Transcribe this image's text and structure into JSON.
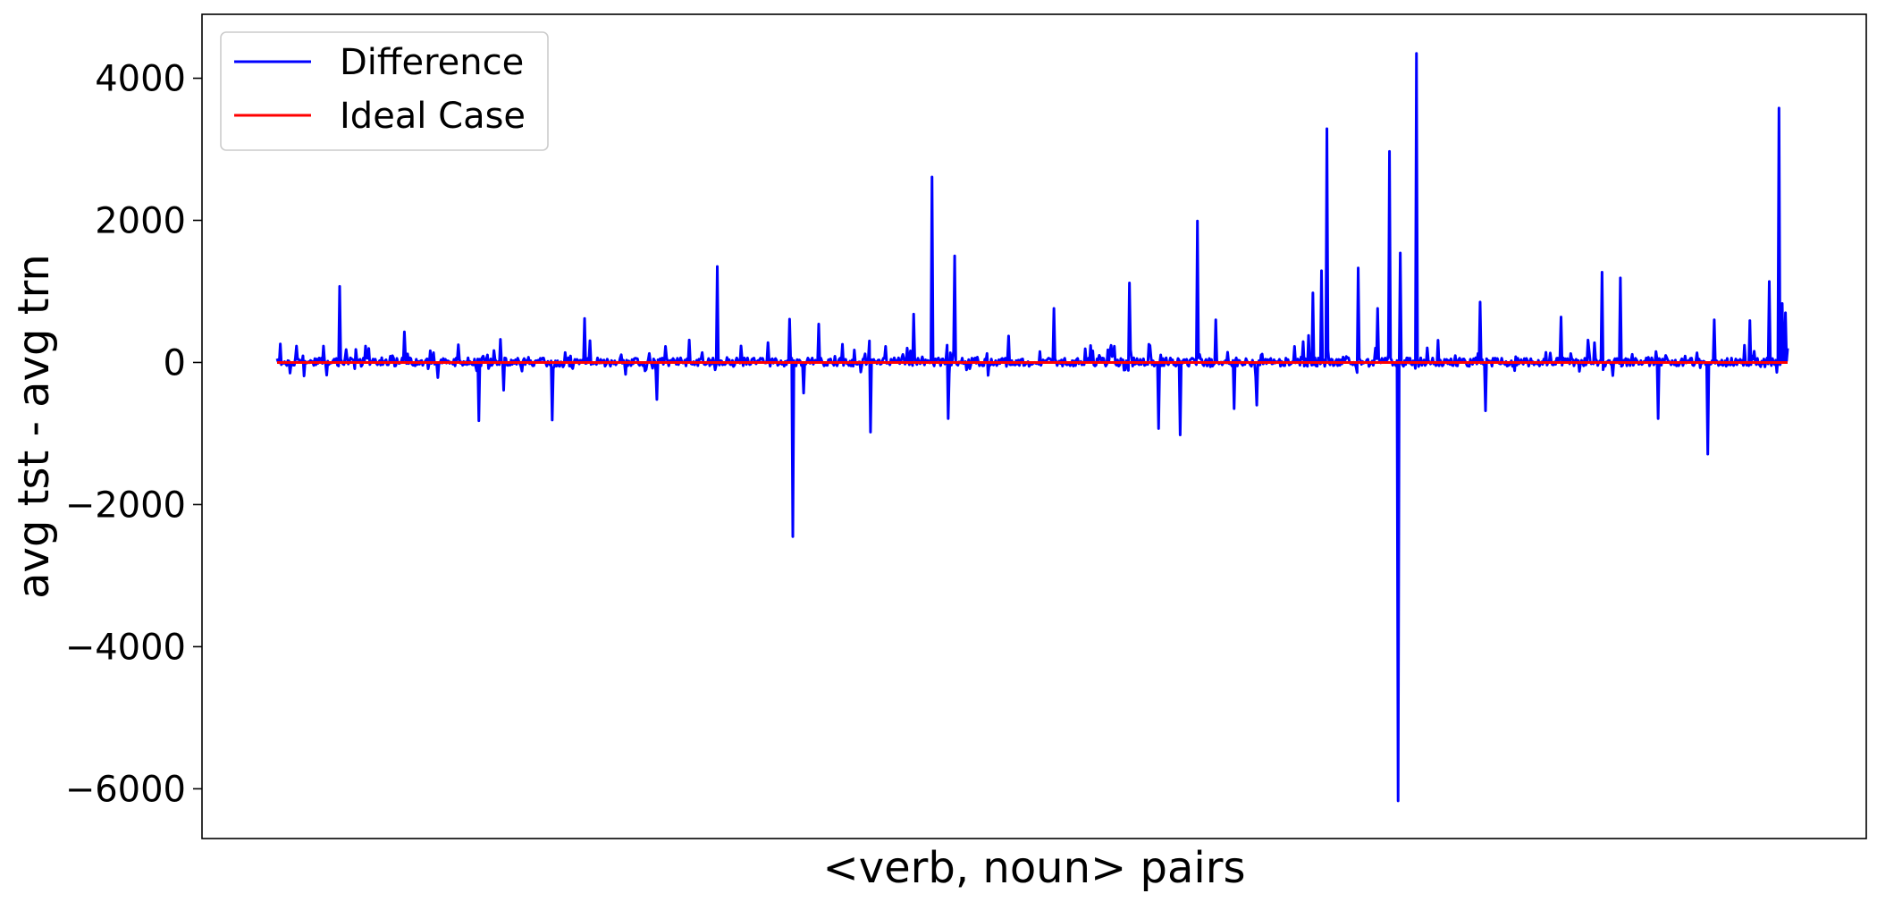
{
  "chart_data": {
    "type": "line",
    "title": "",
    "xlabel": "<verb, noun> pairs",
    "ylabel": "avg tst - avg trn",
    "x_ticks_shown": false,
    "ylim": [
      -6700,
      4900
    ],
    "yticks": [
      4000,
      2000,
      0,
      -2000,
      -4000,
      -6000
    ],
    "ytick_labels": [
      "4000",
      "2000",
      "0",
      "−2000",
      "−4000",
      "−6000"
    ],
    "grid": false,
    "legend": {
      "position": "top-left",
      "entries": [
        "Difference",
        "Ideal Case"
      ]
    },
    "x_range": [
      0,
      1400
    ],
    "series": [
      {
        "name": "Difference",
        "color": "#0000ff",
        "baseline_noise": 120,
        "spikes": [
          {
            "x": 3,
            "y": 260
          },
          {
            "x": 12,
            "y": -150
          },
          {
            "x": 18,
            "y": 230
          },
          {
            "x": 25,
            "y": -190
          },
          {
            "x": 58,
            "y": 1070
          },
          {
            "x": 82,
            "y": 230
          },
          {
            "x": 118,
            "y": 430
          },
          {
            "x": 168,
            "y": 250
          },
          {
            "x": 187,
            "y": -820
          },
          {
            "x": 210,
            "y": -390
          },
          {
            "x": 255,
            "y": -810
          },
          {
            "x": 285,
            "y": 620
          },
          {
            "x": 352,
            "y": -520
          },
          {
            "x": 408,
            "y": 1350
          },
          {
            "x": 475,
            "y": 610
          },
          {
            "x": 478,
            "y": -2450
          },
          {
            "x": 488,
            "y": -430
          },
          {
            "x": 502,
            "y": 540
          },
          {
            "x": 550,
            "y": -980
          },
          {
            "x": 590,
            "y": 680
          },
          {
            "x": 607,
            "y": 2610
          },
          {
            "x": 622,
            "y": -790
          },
          {
            "x": 628,
            "y": 1500
          },
          {
            "x": 720,
            "y": 760
          },
          {
            "x": 790,
            "y": 1120
          },
          {
            "x": 817,
            "y": -930
          },
          {
            "x": 837,
            "y": -1020
          },
          {
            "x": 853,
            "y": 1990
          },
          {
            "x": 870,
            "y": 600
          },
          {
            "x": 887,
            "y": -650
          },
          {
            "x": 908,
            "y": -600
          },
          {
            "x": 960,
            "y": 980
          },
          {
            "x": 968,
            "y": 1290
          },
          {
            "x": 973,
            "y": 3290
          },
          {
            "x": 1002,
            "y": 1330
          },
          {
            "x": 1020,
            "y": 760
          },
          {
            "x": 1031,
            "y": 2970
          },
          {
            "x": 1039,
            "y": -6170
          },
          {
            "x": 1041,
            "y": 1540
          },
          {
            "x": 1056,
            "y": 4350
          },
          {
            "x": 1115,
            "y": 850
          },
          {
            "x": 1120,
            "y": -680
          },
          {
            "x": 1190,
            "y": 640
          },
          {
            "x": 1228,
            "y": 1270
          },
          {
            "x": 1245,
            "y": 1190
          },
          {
            "x": 1280,
            "y": -790
          },
          {
            "x": 1326,
            "y": -1290
          },
          {
            "x": 1332,
            "y": 600
          },
          {
            "x": 1365,
            "y": 590
          },
          {
            "x": 1383,
            "y": 1140
          },
          {
            "x": 1392,
            "y": 3580
          },
          {
            "x": 1395,
            "y": 830
          },
          {
            "x": 1398,
            "y": 700
          },
          {
            "x": 1400,
            "y": 200
          }
        ]
      },
      {
        "name": "Ideal Case",
        "color": "#ff0000",
        "constant_y": 0
      }
    ]
  }
}
